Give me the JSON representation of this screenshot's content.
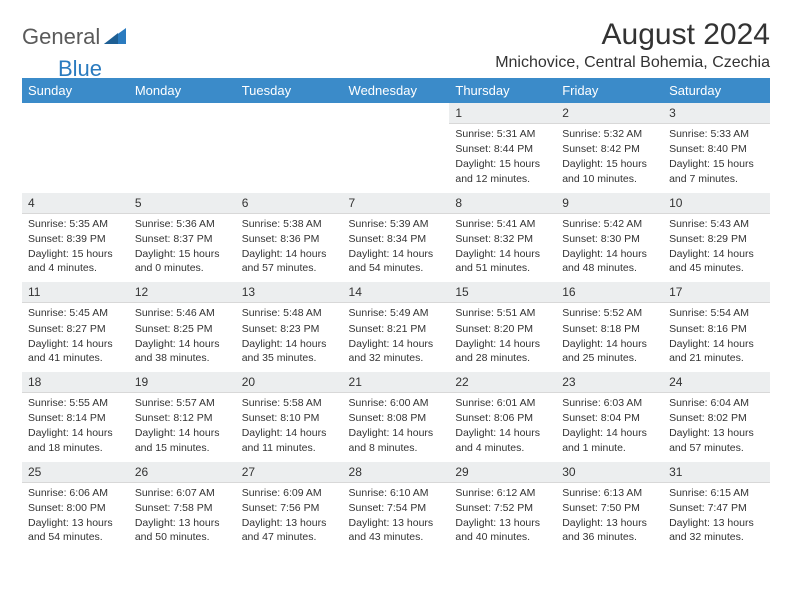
{
  "logo": {
    "text1": "General",
    "text2": "Blue"
  },
  "title": "August 2024",
  "location": "Mnichovice, Central Bohemia, Czechia",
  "colors": {
    "header_bg": "#3b8bc9",
    "header_text": "#ffffff",
    "daynum_bg": "#eceeef",
    "text": "#333333",
    "logo_gray": "#5a5a5a",
    "logo_blue": "#2a7bbf"
  },
  "weekdays": [
    "Sunday",
    "Monday",
    "Tuesday",
    "Wednesday",
    "Thursday",
    "Friday",
    "Saturday"
  ],
  "weeks": [
    [
      null,
      null,
      null,
      null,
      {
        "n": "1",
        "sr": "Sunrise: 5:31 AM",
        "ss": "Sunset: 8:44 PM",
        "dl": "Daylight: 15 hours and 12 minutes."
      },
      {
        "n": "2",
        "sr": "Sunrise: 5:32 AM",
        "ss": "Sunset: 8:42 PM",
        "dl": "Daylight: 15 hours and 10 minutes."
      },
      {
        "n": "3",
        "sr": "Sunrise: 5:33 AM",
        "ss": "Sunset: 8:40 PM",
        "dl": "Daylight: 15 hours and 7 minutes."
      }
    ],
    [
      {
        "n": "4",
        "sr": "Sunrise: 5:35 AM",
        "ss": "Sunset: 8:39 PM",
        "dl": "Daylight: 15 hours and 4 minutes."
      },
      {
        "n": "5",
        "sr": "Sunrise: 5:36 AM",
        "ss": "Sunset: 8:37 PM",
        "dl": "Daylight: 15 hours and 0 minutes."
      },
      {
        "n": "6",
        "sr": "Sunrise: 5:38 AM",
        "ss": "Sunset: 8:36 PM",
        "dl": "Daylight: 14 hours and 57 minutes."
      },
      {
        "n": "7",
        "sr": "Sunrise: 5:39 AM",
        "ss": "Sunset: 8:34 PM",
        "dl": "Daylight: 14 hours and 54 minutes."
      },
      {
        "n": "8",
        "sr": "Sunrise: 5:41 AM",
        "ss": "Sunset: 8:32 PM",
        "dl": "Daylight: 14 hours and 51 minutes."
      },
      {
        "n": "9",
        "sr": "Sunrise: 5:42 AM",
        "ss": "Sunset: 8:30 PM",
        "dl": "Daylight: 14 hours and 48 minutes."
      },
      {
        "n": "10",
        "sr": "Sunrise: 5:43 AM",
        "ss": "Sunset: 8:29 PM",
        "dl": "Daylight: 14 hours and 45 minutes."
      }
    ],
    [
      {
        "n": "11",
        "sr": "Sunrise: 5:45 AM",
        "ss": "Sunset: 8:27 PM",
        "dl": "Daylight: 14 hours and 41 minutes."
      },
      {
        "n": "12",
        "sr": "Sunrise: 5:46 AM",
        "ss": "Sunset: 8:25 PM",
        "dl": "Daylight: 14 hours and 38 minutes."
      },
      {
        "n": "13",
        "sr": "Sunrise: 5:48 AM",
        "ss": "Sunset: 8:23 PM",
        "dl": "Daylight: 14 hours and 35 minutes."
      },
      {
        "n": "14",
        "sr": "Sunrise: 5:49 AM",
        "ss": "Sunset: 8:21 PM",
        "dl": "Daylight: 14 hours and 32 minutes."
      },
      {
        "n": "15",
        "sr": "Sunrise: 5:51 AM",
        "ss": "Sunset: 8:20 PM",
        "dl": "Daylight: 14 hours and 28 minutes."
      },
      {
        "n": "16",
        "sr": "Sunrise: 5:52 AM",
        "ss": "Sunset: 8:18 PM",
        "dl": "Daylight: 14 hours and 25 minutes."
      },
      {
        "n": "17",
        "sr": "Sunrise: 5:54 AM",
        "ss": "Sunset: 8:16 PM",
        "dl": "Daylight: 14 hours and 21 minutes."
      }
    ],
    [
      {
        "n": "18",
        "sr": "Sunrise: 5:55 AM",
        "ss": "Sunset: 8:14 PM",
        "dl": "Daylight: 14 hours and 18 minutes."
      },
      {
        "n": "19",
        "sr": "Sunrise: 5:57 AM",
        "ss": "Sunset: 8:12 PM",
        "dl": "Daylight: 14 hours and 15 minutes."
      },
      {
        "n": "20",
        "sr": "Sunrise: 5:58 AM",
        "ss": "Sunset: 8:10 PM",
        "dl": "Daylight: 14 hours and 11 minutes."
      },
      {
        "n": "21",
        "sr": "Sunrise: 6:00 AM",
        "ss": "Sunset: 8:08 PM",
        "dl": "Daylight: 14 hours and 8 minutes."
      },
      {
        "n": "22",
        "sr": "Sunrise: 6:01 AM",
        "ss": "Sunset: 8:06 PM",
        "dl": "Daylight: 14 hours and 4 minutes."
      },
      {
        "n": "23",
        "sr": "Sunrise: 6:03 AM",
        "ss": "Sunset: 8:04 PM",
        "dl": "Daylight: 14 hours and 1 minute."
      },
      {
        "n": "24",
        "sr": "Sunrise: 6:04 AM",
        "ss": "Sunset: 8:02 PM",
        "dl": "Daylight: 13 hours and 57 minutes."
      }
    ],
    [
      {
        "n": "25",
        "sr": "Sunrise: 6:06 AM",
        "ss": "Sunset: 8:00 PM",
        "dl": "Daylight: 13 hours and 54 minutes."
      },
      {
        "n": "26",
        "sr": "Sunrise: 6:07 AM",
        "ss": "Sunset: 7:58 PM",
        "dl": "Daylight: 13 hours and 50 minutes."
      },
      {
        "n": "27",
        "sr": "Sunrise: 6:09 AM",
        "ss": "Sunset: 7:56 PM",
        "dl": "Daylight: 13 hours and 47 minutes."
      },
      {
        "n": "28",
        "sr": "Sunrise: 6:10 AM",
        "ss": "Sunset: 7:54 PM",
        "dl": "Daylight: 13 hours and 43 minutes."
      },
      {
        "n": "29",
        "sr": "Sunrise: 6:12 AM",
        "ss": "Sunset: 7:52 PM",
        "dl": "Daylight: 13 hours and 40 minutes."
      },
      {
        "n": "30",
        "sr": "Sunrise: 6:13 AM",
        "ss": "Sunset: 7:50 PM",
        "dl": "Daylight: 13 hours and 36 minutes."
      },
      {
        "n": "31",
        "sr": "Sunrise: 6:15 AM",
        "ss": "Sunset: 7:47 PM",
        "dl": "Daylight: 13 hours and 32 minutes."
      }
    ]
  ]
}
